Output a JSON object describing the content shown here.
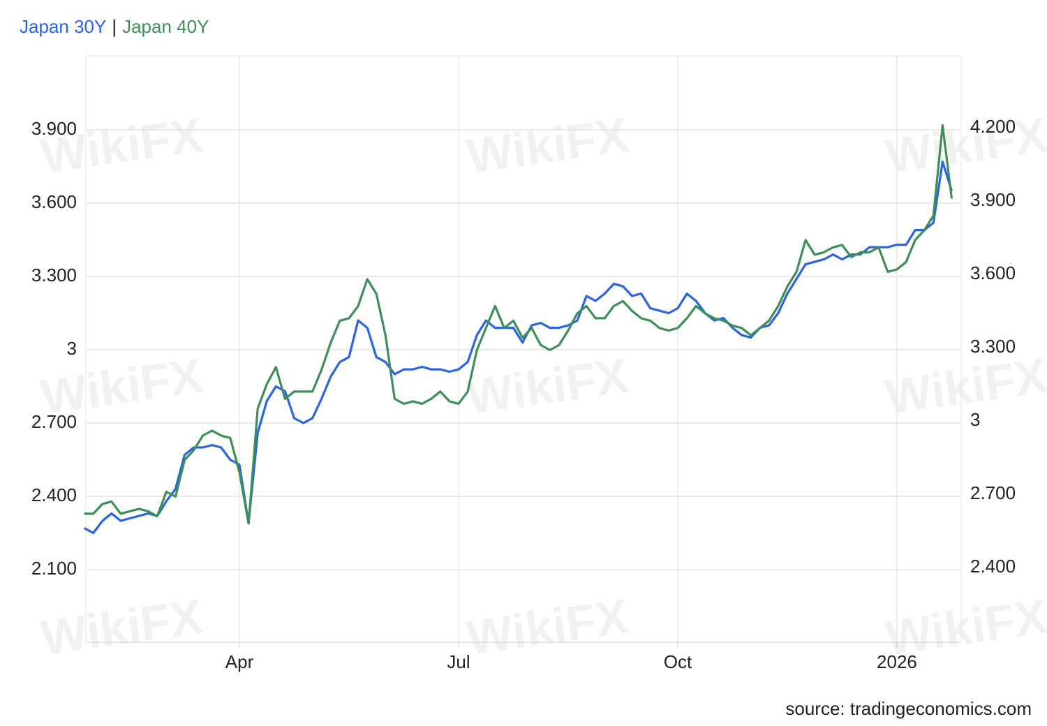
{
  "chart_data": {
    "type": "line",
    "watermark": "WikiFX",
    "legend_separator": "|",
    "source": "source: tradingeconomics.com",
    "categories": [
      null,
      null,
      null,
      null,
      null,
      null,
      null,
      null,
      null,
      null,
      null,
      null,
      null,
      null,
      null,
      null,
      null,
      "Apr",
      null,
      null,
      null,
      null,
      null,
      null,
      null,
      null,
      null,
      null,
      null,
      null,
      null,
      null,
      null,
      null,
      null,
      null,
      null,
      null,
      null,
      null,
      null,
      "Jul",
      null,
      null,
      null,
      null,
      null,
      null,
      null,
      null,
      null,
      null,
      null,
      null,
      null,
      null,
      null,
      null,
      null,
      null,
      null,
      null,
      null,
      null,
      null,
      "Oct",
      null,
      null,
      null,
      null,
      null,
      null,
      null,
      null,
      null,
      null,
      null,
      null,
      null,
      null,
      null,
      null,
      null,
      null,
      null,
      null,
      null,
      null,
      null,
      "2026",
      null,
      null,
      null,
      null,
      null,
      null
    ],
    "series": [
      {
        "name": "Japan 30Y",
        "color": "#2b63e6",
        "axis": "y",
        "values": [
          2.27,
          2.25,
          2.3,
          2.33,
          2.3,
          2.31,
          2.32,
          2.33,
          2.32,
          2.38,
          2.43,
          2.57,
          2.6,
          2.6,
          2.61,
          2.6,
          2.55,
          2.53,
          2.29,
          2.66,
          2.79,
          2.85,
          2.83,
          2.72,
          2.7,
          2.72,
          2.8,
          2.89,
          2.95,
          2.97,
          3.12,
          3.09,
          2.97,
          2.95,
          2.9,
          2.92,
          2.92,
          2.93,
          2.92,
          2.92,
          2.91,
          2.92,
          2.95,
          3.06,
          3.12,
          3.09,
          3.09,
          3.09,
          3.03,
          3.1,
          3.11,
          3.09,
          3.09,
          3.1,
          3.12,
          3.22,
          3.2,
          3.23,
          3.27,
          3.26,
          3.22,
          3.23,
          3.17,
          3.16,
          3.15,
          3.17,
          3.23,
          3.2,
          3.15,
          3.12,
          3.13,
          3.09,
          3.06,
          3.05,
          3.09,
          3.1,
          3.15,
          3.23,
          3.29,
          3.35,
          3.36,
          3.37,
          3.39,
          3.37,
          3.39,
          3.39,
          3.42,
          3.42,
          3.42,
          3.43,
          3.43,
          3.49,
          3.49,
          3.52,
          3.77,
          3.65
        ]
      },
      {
        "name": "Japan 40Y",
        "color": "#3d8f57",
        "axis": "y2",
        "values": [
          2.62,
          2.62,
          2.66,
          2.67,
          2.62,
          2.63,
          2.64,
          2.63,
          2.61,
          2.71,
          2.69,
          2.84,
          2.88,
          2.94,
          2.96,
          2.94,
          2.93,
          2.79,
          2.58,
          3.05,
          3.15,
          3.22,
          3.09,
          3.12,
          3.12,
          3.12,
          3.21,
          3.32,
          3.41,
          3.42,
          3.47,
          3.58,
          3.52,
          3.35,
          3.09,
          3.07,
          3.08,
          3.07,
          3.09,
          3.12,
          3.08,
          3.07,
          3.12,
          3.29,
          3.38,
          3.47,
          3.38,
          3.41,
          3.34,
          3.38,
          3.31,
          3.29,
          3.31,
          3.37,
          3.44,
          3.47,
          3.42,
          3.42,
          3.47,
          3.49,
          3.45,
          3.42,
          3.41,
          3.38,
          3.37,
          3.38,
          3.42,
          3.47,
          3.44,
          3.42,
          3.41,
          3.39,
          3.38,
          3.35,
          3.38,
          3.41,
          3.47,
          3.55,
          3.61,
          3.74,
          3.68,
          3.69,
          3.71,
          3.72,
          3.67,
          3.69,
          3.69,
          3.71,
          3.61,
          3.62,
          3.65,
          3.74,
          3.78,
          3.84,
          4.21,
          3.91
        ]
      }
    ],
    "ylim": [
      1.803,
      4.203
    ],
    "yticks": [
      {
        "value": 2.1,
        "label": "2.100"
      },
      {
        "value": 2.4,
        "label": "2.400"
      },
      {
        "value": 2.7,
        "label": "2.700"
      },
      3,
      {
        "value": 3.3,
        "label": "3.300"
      },
      {
        "value": 3.6,
        "label": "3.600"
      },
      {
        "value": 3.9,
        "label": "3.900"
      }
    ],
    "y2lim": [
      2.094,
      4.494
    ],
    "y2ticks": [
      {
        "value": 2.4,
        "label": "2.400"
      },
      {
        "value": 2.7,
        "label": "2.700"
      },
      3,
      {
        "value": 3.3,
        "label": "3.300"
      },
      {
        "value": 3.6,
        "label": "3.600"
      },
      {
        "value": 3.9,
        "label": "3.900"
      },
      {
        "value": 4.2,
        "label": "4.200"
      }
    ],
    "grid": true
  }
}
